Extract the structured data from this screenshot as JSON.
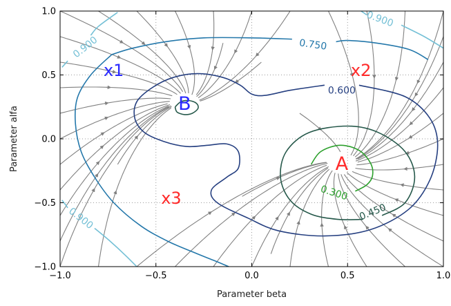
{
  "chart_data": {
    "type": "contour",
    "title": "",
    "xlabel": "Parameter beta",
    "ylabel": "Parameter alfa",
    "xlim": [
      -1.0,
      1.0
    ],
    "ylim": [
      -1.0,
      1.0
    ],
    "grid": true,
    "grid_style": "dotted",
    "x_ticks": [
      -1.0,
      -0.5,
      0.0,
      0.5,
      1.0
    ],
    "y_ticks": [
      -1.0,
      -0.5,
      0.0,
      0.5,
      1.0
    ],
    "x_tick_labels": [
      "−1.0",
      "−0.5",
      "0.0",
      "0.5",
      "1.0"
    ],
    "y_tick_labels": [
      "−1.0",
      "−0.5",
      "0.0",
      "0.5",
      "1.0"
    ],
    "contours": [
      {
        "level": "0.300",
        "color": "#2ca02c",
        "points": [
          [
            0.31,
            -0.2
          ],
          [
            0.36,
            -0.1
          ],
          [
            0.46,
            -0.05
          ],
          [
            0.56,
            -0.09
          ],
          [
            0.62,
            -0.19
          ],
          [
            0.63,
            -0.29
          ],
          [
            0.6,
            -0.36
          ],
          [
            0.54,
            -0.41
          ]
        ]
      },
      {
        "level": "0.450",
        "color": "#25584a",
        "points": [
          [
            0.68,
            -0.6
          ],
          [
            0.8,
            -0.5
          ],
          [
            0.85,
            -0.3
          ],
          [
            0.8,
            -0.1
          ],
          [
            0.66,
            0.05
          ],
          [
            0.5,
            0.1
          ],
          [
            0.3,
            0.05
          ],
          [
            0.18,
            -0.1
          ],
          [
            0.15,
            -0.3
          ],
          [
            0.2,
            -0.48
          ],
          [
            0.31,
            -0.59
          ],
          [
            0.45,
            -0.63
          ],
          [
            0.58,
            -0.63
          ]
        ]
      },
      {
        "level": "0.450",
        "color": "#25584a",
        "points": [
          [
            -0.4,
            0.25
          ],
          [
            -0.37,
            0.29
          ],
          [
            -0.33,
            0.3
          ],
          [
            -0.29,
            0.28
          ],
          [
            -0.28,
            0.24
          ],
          [
            -0.31,
            0.2
          ],
          [
            -0.35,
            0.19
          ],
          [
            -0.39,
            0.21
          ],
          [
            -0.4,
            0.25
          ]
        ]
      },
      {
        "level": "0.600",
        "color": "#253f80",
        "points": [
          [
            0.56,
            0.42
          ],
          [
            0.8,
            0.33
          ],
          [
            0.93,
            0.16
          ],
          [
            0.97,
            -0.05
          ],
          [
            0.93,
            -0.32
          ],
          [
            0.82,
            -0.55
          ],
          [
            0.62,
            -0.71
          ],
          [
            0.38,
            -0.76
          ],
          [
            0.14,
            -0.72
          ],
          [
            -0.02,
            -0.62
          ],
          [
            -0.18,
            -0.5
          ],
          [
            -0.21,
            -0.4
          ],
          [
            -0.13,
            -0.3
          ],
          [
            -0.07,
            -0.23
          ],
          [
            -0.07,
            -0.1
          ],
          [
            -0.13,
            -0.04
          ],
          [
            -0.23,
            -0.05
          ],
          [
            -0.34,
            -0.06
          ],
          [
            -0.46,
            -0.02
          ],
          [
            -0.56,
            0.05
          ],
          [
            -0.61,
            0.16
          ],
          [
            -0.6,
            0.29
          ],
          [
            -0.52,
            0.4
          ],
          [
            -0.41,
            0.48
          ],
          [
            -0.28,
            0.51
          ],
          [
            -0.15,
            0.48
          ],
          [
            -0.06,
            0.42
          ],
          [
            0.0,
            0.35
          ],
          [
            0.07,
            0.34
          ],
          [
            0.2,
            0.38
          ],
          [
            0.38,
            0.42
          ]
        ]
      },
      {
        "level": "0.750",
        "color": "#2377aa",
        "points": [
          [
            -0.73,
            0.66
          ],
          [
            -0.84,
            0.5
          ],
          [
            -0.91,
            0.32
          ],
          [
            -0.92,
            0.12
          ],
          [
            -0.89,
            -0.1
          ],
          [
            -0.82,
            -0.3
          ],
          [
            -0.72,
            -0.5
          ],
          [
            -0.58,
            -0.68
          ],
          [
            -0.44,
            -0.8
          ],
          [
            -0.3,
            -0.89
          ],
          [
            -0.2,
            -0.95
          ],
          [
            -0.12,
            -1.0
          ]
        ]
      },
      {
        "level": "0.750",
        "color": "#2377aa",
        "points": [
          [
            0.92,
            0.62
          ],
          [
            0.82,
            0.7
          ],
          [
            0.65,
            0.75
          ],
          [
            0.5,
            0.77
          ],
          [
            0.44,
            0.76
          ]
        ]
      },
      {
        "level": "0.750",
        "color": "#2377aa",
        "points": [
          [
            0.21,
            0.78
          ],
          [
            0.0,
            0.79
          ],
          [
            -0.25,
            0.79
          ],
          [
            -0.45,
            0.76
          ],
          [
            -0.62,
            0.71
          ],
          [
            -0.73,
            0.66
          ]
        ]
      },
      {
        "level": "0.900",
        "color": "#74c0d6",
        "points": [
          [
            -0.7,
            0.99
          ],
          [
            -0.8,
            0.88
          ],
          [
            -0.84,
            0.81
          ]
        ]
      },
      {
        "level": "0.900",
        "color": "#74c0d6",
        "points": [
          [
            -0.96,
            0.61
          ],
          [
            -0.99,
            0.56
          ]
        ]
      },
      {
        "level": "0.900",
        "color": "#74c0d6",
        "points": [
          [
            0.57,
            1.0
          ],
          [
            0.6,
            0.97
          ]
        ]
      },
      {
        "level": "0.900",
        "color": "#74c0d6",
        "points": [
          [
            0.78,
            0.89
          ],
          [
            0.9,
            0.8
          ],
          [
            1.0,
            0.71
          ]
        ]
      },
      {
        "level": "0.900",
        "color": "#74c0d6",
        "points": [
          [
            -0.99,
            -0.48
          ],
          [
            -0.96,
            -0.54
          ]
        ]
      },
      {
        "level": "0.900",
        "color": "#74c0d6",
        "points": [
          [
            -0.82,
            -0.7
          ],
          [
            -0.74,
            -0.8
          ],
          [
            -0.66,
            -0.91
          ],
          [
            -0.6,
            -1.0
          ]
        ]
      }
    ],
    "contour_labels": [
      {
        "text": "0.900",
        "x": -0.87,
        "y": 0.72,
        "rotation": -38,
        "color": "#74c0d6"
      },
      {
        "text": "0.900",
        "x": 0.67,
        "y": 0.94,
        "rotation": 20,
        "color": "#74c0d6"
      },
      {
        "text": "0.900",
        "x": -0.89,
        "y": -0.62,
        "rotation": 38,
        "color": "#74c0d6"
      },
      {
        "text": "0.750",
        "x": 0.32,
        "y": 0.74,
        "rotation": 8,
        "color": "#2377aa"
      },
      {
        "text": "0.600",
        "x": 0.47,
        "y": 0.38,
        "rotation": 0,
        "color": "#253f80"
      },
      {
        "text": "0.450",
        "x": 0.63,
        "y": -0.57,
        "rotation": -22,
        "color": "#25584a"
      },
      {
        "text": "0.300",
        "x": 0.43,
        "y": -0.42,
        "rotation": 18,
        "color": "#2ca02c"
      }
    ],
    "points": [
      {
        "name": "A",
        "x": 0.47,
        "y": -0.19,
        "color": "#ff2a2a"
      },
      {
        "name": "B",
        "x": -0.35,
        "y": 0.28,
        "color": "#2a2aff"
      }
    ],
    "region_labels": [
      {
        "name": "x1",
        "x": -0.72,
        "y": 0.54,
        "color": "#2a2aff"
      },
      {
        "name": "x2",
        "x": 0.57,
        "y": 0.54,
        "color": "#ff2a2a"
      },
      {
        "name": "x3",
        "x": -0.42,
        "y": -0.46,
        "color": "#ff2a2a"
      }
    ],
    "streamlines": {
      "color": "#808080",
      "attractors": [
        {
          "name": "A",
          "x": 0.47,
          "y": -0.19
        },
        {
          "name": "B",
          "x": -0.35,
          "y": 0.28
        }
      ],
      "separatrix": [
        [
          -0.6,
          -1.0
        ],
        [
          -0.35,
          -0.55
        ],
        [
          -0.18,
          -0.15
        ],
        [
          -0.1,
          0.08
        ],
        [
          0.0,
          0.35
        ],
        [
          0.3,
          1.0
        ]
      ]
    },
    "colors": {
      "background": "#ffffff",
      "grid": "#999999",
      "axes": "#000000"
    }
  }
}
